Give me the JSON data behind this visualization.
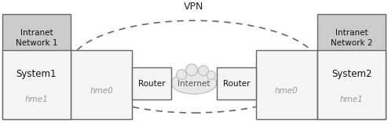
{
  "vpn_label": "VPN",
  "internet_label": "Internet",
  "router_label": "Router",
  "intranet1_label": "Intranet\nNetwork 1",
  "intranet2_label": "Intranet\nNetwork 2",
  "system1_label": "System1",
  "system2_label": "System2",
  "hme0_label": "hme0",
  "hme1_label": "hme1",
  "bg_color": "#ffffff",
  "box_edge_color": "#666666",
  "box_fill_intranet": "#cccccc",
  "box_fill_white": "#f5f5f5",
  "hme_text_color": "#999999",
  "dashed_ellipse_color": "#666666",
  "arrow_color": "#333333",
  "cloud_fill": "#e8e8e8",
  "cloud_edge": "#bbbbbb",
  "fig_w": 4.94,
  "fig_h": 1.57,
  "dpi": 100
}
